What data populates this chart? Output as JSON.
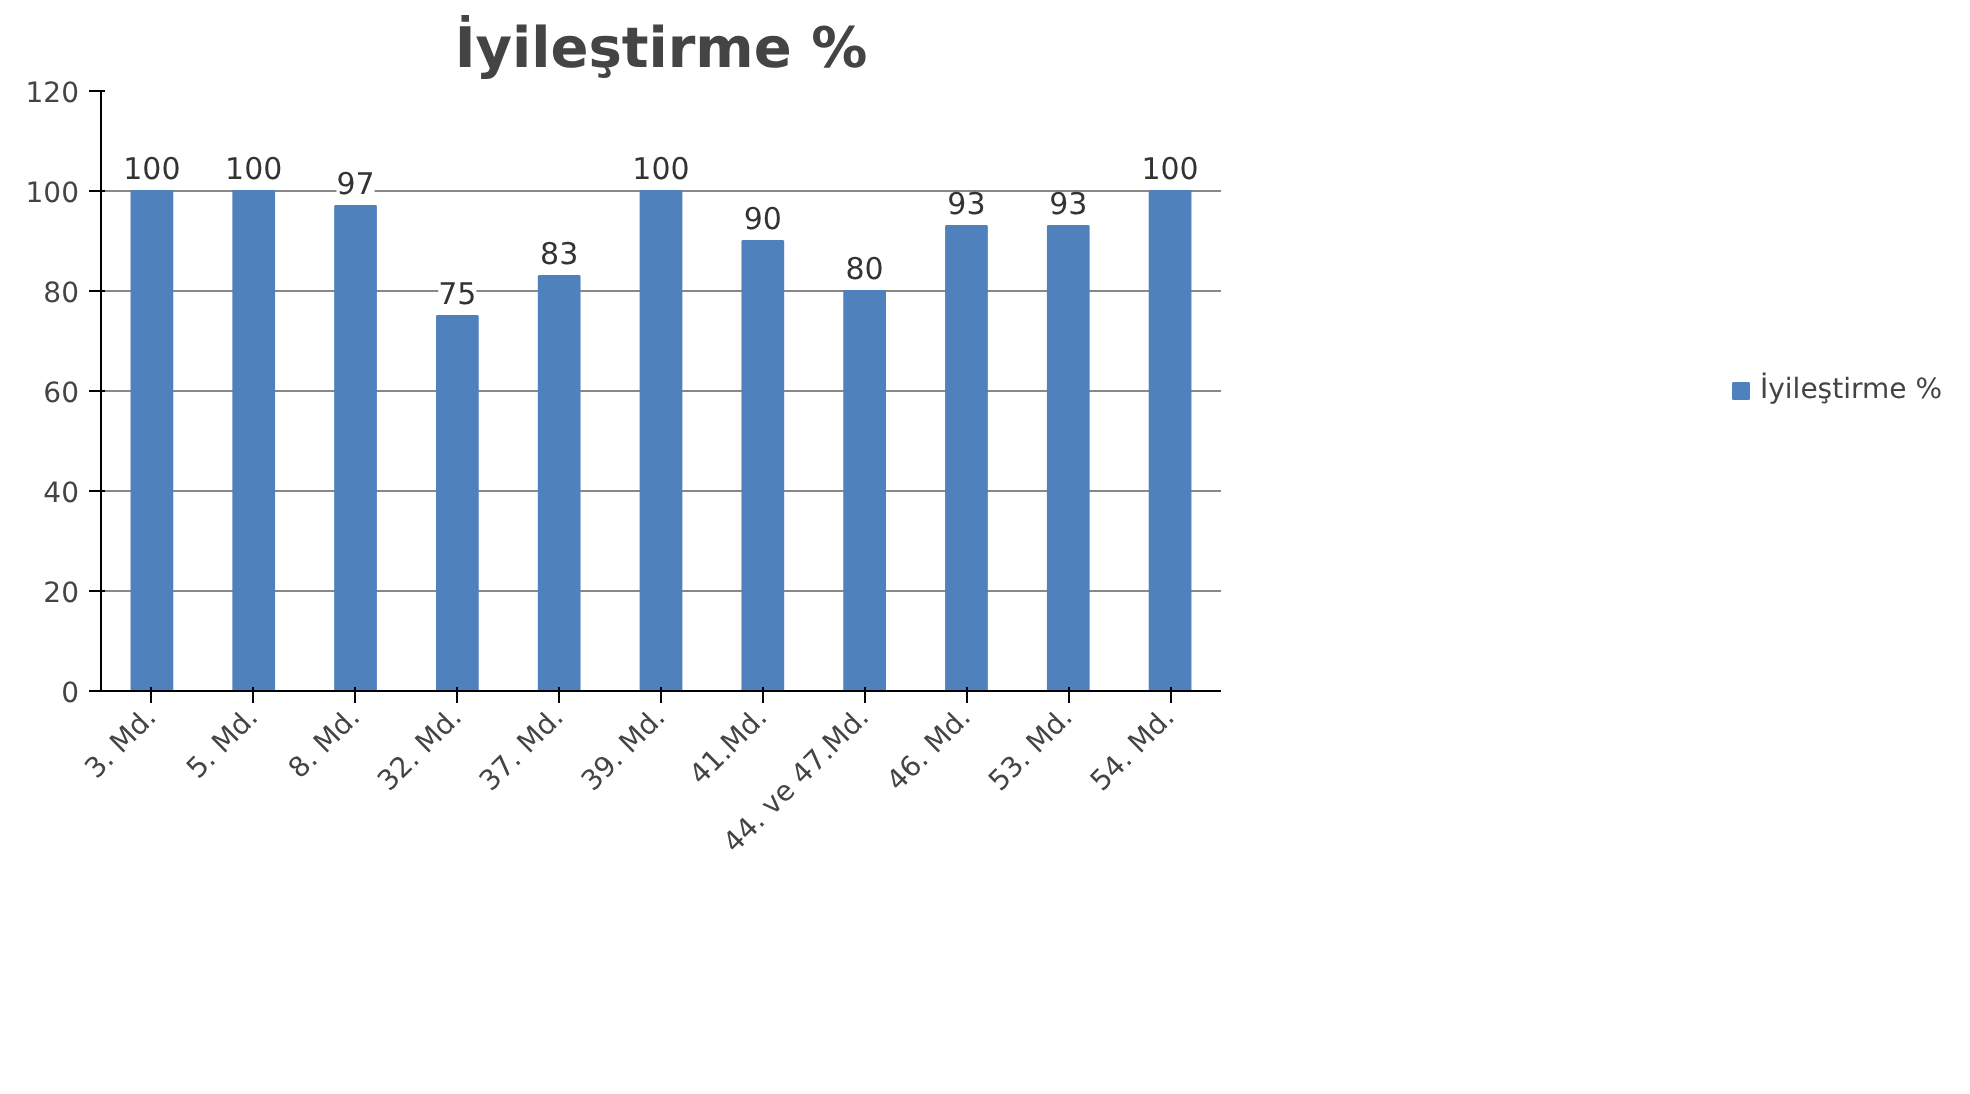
{
  "chart_data": {
    "type": "bar",
    "title": "İyileştirme %",
    "categories": [
      "3. Md.",
      "5. Md.",
      "8. Md.",
      "32. Md.",
      "37. Md.",
      "39. Md.",
      "41.Md.",
      "44. ve 47.Md.",
      "46. Md.",
      "53. Md.",
      "54. Md."
    ],
    "series": [
      {
        "name": "İyileştirme %",
        "color": "#4f81bd",
        "values": [
          100,
          100,
          97,
          75,
          83,
          100,
          90,
          80,
          93,
          93,
          100
        ]
      }
    ],
    "ylim": [
      0,
      120
    ],
    "yticks": [
      0,
      20,
      40,
      60,
      80,
      100,
      120
    ],
    "grid": "y",
    "legend": "right",
    "data_labels": true
  }
}
